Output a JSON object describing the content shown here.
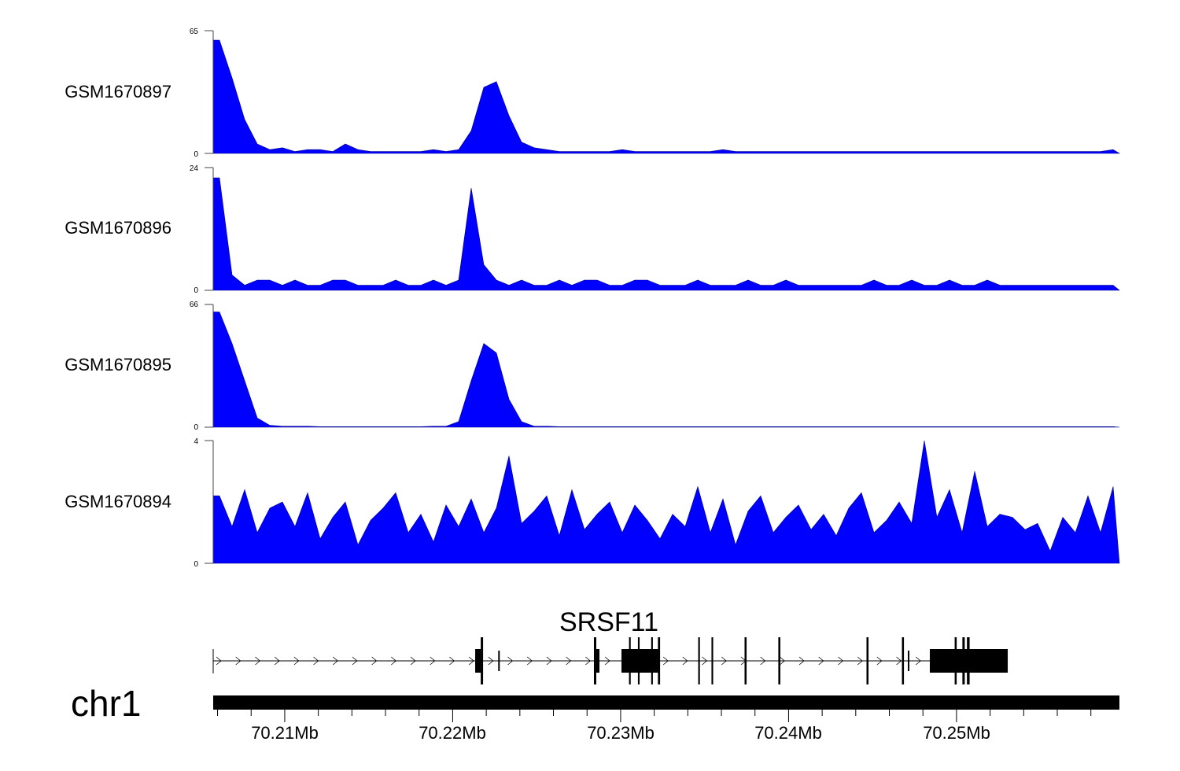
{
  "chart_data": {
    "type": "area",
    "title": "",
    "xlabel": "",
    "x_range_mb": [
      70.20574,
      70.2597
    ],
    "bins": 72,
    "color": "#0000FF",
    "tracks": [
      {
        "name": "GSM1670897",
        "ylim": [
          0,
          65
        ],
        "tick_labels": [
          "0",
          "65"
        ],
        "values": [
          60,
          40,
          18,
          5,
          2,
          3,
          1,
          2,
          2,
          1,
          5,
          2,
          1,
          1,
          1,
          1,
          1,
          2,
          1,
          2,
          12,
          35,
          38,
          20,
          6,
          3,
          2,
          1,
          1,
          1,
          1,
          1,
          2,
          1,
          1,
          1,
          1,
          1,
          1,
          1,
          2,
          1,
          1,
          1,
          1,
          1,
          1,
          1,
          1,
          1,
          1,
          1,
          1,
          1,
          1,
          1,
          1,
          1,
          1,
          1,
          1,
          1,
          1,
          1,
          1,
          1,
          1,
          1,
          1,
          1,
          1,
          2
        ]
      },
      {
        "name": "GSM1670896",
        "ylim": [
          0,
          24
        ],
        "tick_labels": [
          "0",
          "24"
        ],
        "values": [
          22,
          3,
          1,
          2,
          2,
          1,
          2,
          1,
          1,
          2,
          2,
          1,
          1,
          1,
          2,
          1,
          1,
          2,
          1,
          2,
          20,
          5,
          2,
          1,
          2,
          1,
          1,
          2,
          1,
          2,
          2,
          1,
          1,
          2,
          2,
          1,
          1,
          1,
          2,
          1,
          1,
          1,
          2,
          1,
          1,
          2,
          1,
          1,
          1,
          1,
          1,
          1,
          2,
          1,
          1,
          2,
          1,
          1,
          2,
          1,
          1,
          2,
          1,
          1,
          1,
          1,
          1,
          1,
          1,
          1,
          1,
          1
        ]
      },
      {
        "name": "GSM1670895",
        "ylim": [
          0,
          66
        ],
        "tick_labels": [
          "0",
          "66"
        ],
        "values": [
          62,
          45,
          25,
          5,
          1,
          0.5,
          0.5,
          0.5,
          0.3,
          0.3,
          0.3,
          0.3,
          0.3,
          0.3,
          0.3,
          0.3,
          0.3,
          0.5,
          0.5,
          3,
          25,
          45,
          40,
          15,
          3,
          0.5,
          0.5,
          0.3,
          0.3,
          0.3,
          0.3,
          0.3,
          0.3,
          0.3,
          0.3,
          0.3,
          0.3,
          0.3,
          0.3,
          0.3,
          0.3,
          0.3,
          0.3,
          0.3,
          0.3,
          0.3,
          0.3,
          0.3,
          0.3,
          0.3,
          0.3,
          0.3,
          0.3,
          0.3,
          0.3,
          0.3,
          0.3,
          0.3,
          0.3,
          0.3,
          0.3,
          0.3,
          0.3,
          0.3,
          0.3,
          0.3,
          0.3,
          0.3,
          0.3,
          0.3,
          0.3,
          0.3
        ]
      },
      {
        "name": "GSM1670894",
        "ylim": [
          0,
          4
        ],
        "tick_labels": [
          "0",
          "4"
        ],
        "values": [
          2.2,
          1.2,
          2.4,
          1.0,
          1.8,
          2.0,
          1.2,
          2.3,
          0.8,
          1.5,
          2.0,
          0.6,
          1.4,
          1.8,
          2.3,
          1.0,
          1.6,
          0.7,
          1.9,
          1.2,
          2.1,
          1.0,
          1.8,
          3.5,
          1.3,
          1.7,
          2.2,
          0.9,
          2.4,
          1.1,
          1.6,
          2.0,
          1.0,
          1.9,
          1.4,
          0.8,
          1.6,
          1.2,
          2.5,
          1.0,
          2.1,
          0.6,
          1.7,
          2.2,
          1.0,
          1.5,
          1.9,
          1.1,
          1.6,
          0.9,
          1.8,
          2.3,
          1.0,
          1.4,
          2.0,
          1.3,
          4.0,
          1.5,
          2.4,
          1.0,
          3.0,
          1.2,
          1.6,
          1.5,
          1.1,
          1.3,
          0.4,
          1.5,
          1.0,
          2.2,
          1.0,
          2.5
        ]
      }
    ],
    "gene": {
      "name": "SRSF11",
      "strand": "+",
      "intron_range_mb": [
        70.20574,
        70.25305
      ],
      "exons_mb": [
        [
          70.22134,
          70.22167,
          "utr"
        ],
        [
          70.22167,
          70.22181,
          "cds"
        ],
        [
          70.22271,
          70.22276,
          "thin"
        ],
        [
          70.22841,
          70.22855,
          "cds"
        ],
        [
          70.22855,
          70.22874,
          "utr"
        ],
        [
          70.23005,
          70.2323,
          "utr"
        ],
        [
          70.2305,
          70.2306,
          "cds"
        ],
        [
          70.23103,
          70.23113,
          "cds"
        ],
        [
          70.23182,
          70.23192,
          "cds"
        ],
        [
          70.23222,
          70.23235,
          "cds"
        ],
        [
          70.23462,
          70.23472,
          "cds"
        ],
        [
          70.23541,
          70.23551,
          "cds"
        ],
        [
          70.23738,
          70.2375,
          "cds"
        ],
        [
          70.23939,
          70.23951,
          "cds"
        ],
        [
          70.24464,
          70.24476,
          "cds"
        ],
        [
          70.24675,
          70.24687,
          "cds"
        ],
        [
          70.2471,
          70.24716,
          "thin"
        ],
        [
          70.24841,
          70.25305,
          "utr"
        ],
        [
          70.24989,
          70.25001,
          "cds"
        ],
        [
          70.25035,
          70.25049,
          "cds"
        ],
        [
          70.25062,
          70.25078,
          "cds"
        ]
      ]
    },
    "chromosome": "chr1",
    "axis": {
      "tick_labels": [
        "70.21Mb",
        "70.22Mb",
        "70.23Mb",
        "70.24Mb",
        "70.25Mb"
      ],
      "major_ticks_mb": [
        70.21,
        70.22,
        70.23,
        70.24,
        70.25
      ],
      "minor_step_mb": 0.002
    }
  }
}
